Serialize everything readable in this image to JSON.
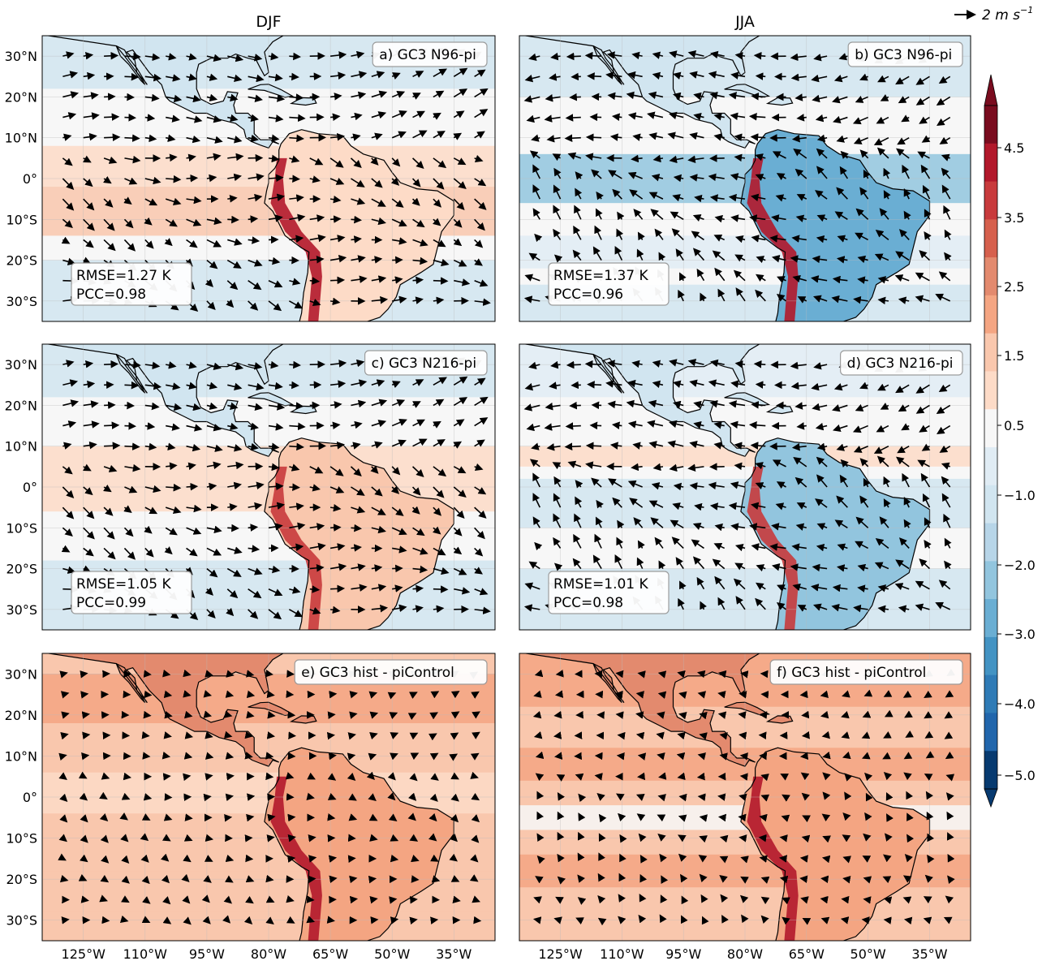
{
  "columns": [
    "DJF",
    "JJA"
  ],
  "reference_arrow": {
    "label": "2 m s",
    "exponent": "−1"
  },
  "panels": [
    {
      "id": "a",
      "title": "a) GC3 N96-pi",
      "rmse": "RMSE=1.27 K",
      "pcc": "PCC=0.98"
    },
    {
      "id": "b",
      "title": "b) GC3 N96-pi",
      "rmse": "RMSE=1.37 K",
      "pcc": "PCC=0.96"
    },
    {
      "id": "c",
      "title": "c) GC3 N216-pi",
      "rmse": "RMSE=1.05 K",
      "pcc": "PCC=0.99"
    },
    {
      "id": "d",
      "title": "d) GC3 N216-pi",
      "rmse": "RMSE=1.01 K",
      "pcc": "PCC=0.98"
    },
    {
      "id": "e",
      "title": "e) GC3 hist - piControl"
    },
    {
      "id": "f",
      "title": "f) GC3 hist - piControl"
    }
  ],
  "lat_labels": [
    "30°N",
    "20°N",
    "10°N",
    "0°",
    "10°S",
    "20°S",
    "30°S"
  ],
  "lat_values": [
    30,
    20,
    10,
    0,
    -10,
    -20,
    -30
  ],
  "lon_labels": [
    "125°W",
    "110°W",
    "95°W",
    "80°W",
    "65°W",
    "50°W",
    "35°W"
  ],
  "lon_values": [
    -125,
    -110,
    -95,
    -80,
    -65,
    -50,
    -35
  ],
  "colorbar": {
    "ticks": [
      "4.5",
      "3.5",
      "2.5",
      "1.5",
      "0.5",
      "−1.0",
      "−2.0",
      "−3.0",
      "−4.0",
      "−5.0"
    ],
    "colors": [
      "#7a0c1f",
      "#b2182b",
      "#c83a3c",
      "#d6604d",
      "#e38a6e",
      "#f4a582",
      "#f9c7ad",
      "#fddbc7",
      "#f7f7f7",
      "#e0ecf4",
      "#d1e5f0",
      "#b7d5e8",
      "#92c5de",
      "#6aaed3",
      "#4393c3",
      "#2f7bb6",
      "#2166ac",
      "#073a70"
    ],
    "extend": "both"
  }
}
